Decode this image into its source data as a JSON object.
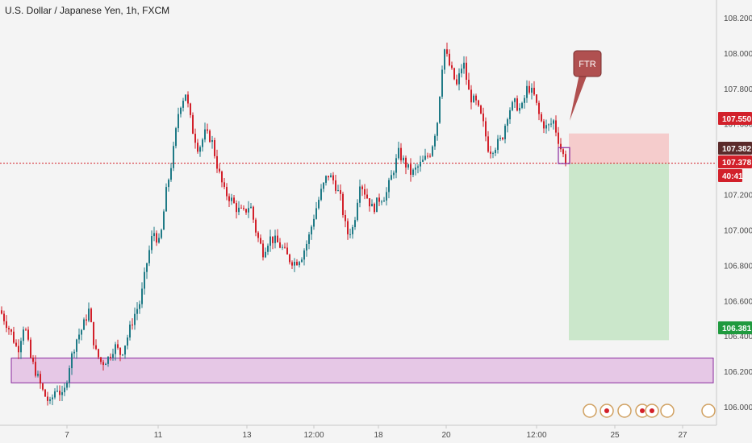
{
  "colors": {
    "background": "#f4f4f4",
    "up": "#1f7a86",
    "down": "#d2202a",
    "stop_zone": "#f5c4c4",
    "target_zone": "#c6e6c6",
    "demand_zone": "#e6c8e6",
    "demand_border": "#8a2a9e",
    "price_line": "#d2202a",
    "badge_red": "#d2202a",
    "badge_green": "#1f9a3e",
    "badge_dark": "#5a2a2a",
    "callout": "#b05050"
  },
  "chart_data": {
    "type": "candlestick",
    "title": "U.S. Dollar / Japanese Yen, 1h, FXCM",
    "ylim": [
      105.9,
      108.25
    ],
    "y_ticks": [
      "106.000",
      "106.200",
      "106.400",
      "106.600",
      "106.800",
      "107.000",
      "107.200",
      "107.400",
      "107.600",
      "107.800",
      "108.000",
      "108.200"
    ],
    "x_ticks": [
      "7",
      "11",
      "13",
      "12:00",
      "18",
      "20",
      "12:00",
      "25",
      "27"
    ],
    "price_badges": [
      {
        "label": "107.550",
        "value": 107.55,
        "color": "red"
      },
      {
        "label": "107.382",
        "value": 107.382,
        "color": "dark"
      },
      {
        "label": "107.378",
        "value": 107.378,
        "color": "red"
      },
      {
        "label": "40:41",
        "value": 107.28,
        "color": "red"
      },
      {
        "label": "106.381",
        "value": 106.381,
        "color": "green"
      }
    ],
    "current_price": 107.382,
    "position": {
      "entry": 107.38,
      "stop": 107.55,
      "target": 106.381
    },
    "demand_zone": [
      106.14,
      106.28
    ],
    "annotation": {
      "text": "FTR",
      "box_high": 107.47,
      "box_low": 107.38
    },
    "price_path": [
      [
        0,
        106.55
      ],
      [
        14,
        106.42
      ],
      [
        22,
        106.32
      ],
      [
        30,
        106.48
      ],
      [
        38,
        106.28
      ],
      [
        46,
        106.18
      ],
      [
        54,
        106.08
      ],
      [
        62,
        106.02
      ],
      [
        70,
        106.12
      ],
      [
        78,
        106.05
      ],
      [
        86,
        106.24
      ],
      [
        94,
        106.38
      ],
      [
        102,
        106.45
      ],
      [
        110,
        106.55
      ],
      [
        118,
        106.32
      ],
      [
        126,
        106.25
      ],
      [
        134,
        106.28
      ],
      [
        142,
        106.35
      ],
      [
        150,
        106.3
      ],
      [
        158,
        106.4
      ],
      [
        166,
        106.52
      ],
      [
        174,
        106.6
      ],
      [
        182,
        106.82
      ],
      [
        190,
        107.0
      ],
      [
        198,
        106.92
      ],
      [
        206,
        107.22
      ],
      [
        214,
        107.42
      ],
      [
        222,
        107.7
      ],
      [
        230,
        107.78
      ],
      [
        238,
        107.58
      ],
      [
        246,
        107.46
      ],
      [
        254,
        107.55
      ],
      [
        262,
        107.52
      ],
      [
        270,
        107.35
      ],
      [
        278,
        107.22
      ],
      [
        286,
        107.18
      ],
      [
        294,
        107.12
      ],
      [
        302,
        107.1
      ],
      [
        310,
        107.15
      ],
      [
        318,
        106.98
      ],
      [
        326,
        106.88
      ],
      [
        334,
        106.96
      ],
      [
        342,
        106.94
      ],
      [
        350,
        106.9
      ],
      [
        358,
        106.84
      ],
      [
        366,
        106.82
      ],
      [
        374,
        106.86
      ],
      [
        382,
        106.95
      ],
      [
        390,
        107.1
      ],
      [
        398,
        107.22
      ],
      [
        406,
        107.32
      ],
      [
        414,
        107.28
      ],
      [
        422,
        107.18
      ],
      [
        430,
        106.98
      ],
      [
        438,
        107.02
      ],
      [
        446,
        107.28
      ],
      [
        454,
        107.2
      ],
      [
        462,
        107.12
      ],
      [
        470,
        107.18
      ],
      [
        478,
        107.2
      ],
      [
        486,
        107.32
      ],
      [
        494,
        107.44
      ],
      [
        502,
        107.38
      ],
      [
        510,
        107.32
      ],
      [
        518,
        107.36
      ],
      [
        526,
        107.4
      ],
      [
        534,
        107.45
      ],
      [
        542,
        107.62
      ],
      [
        550,
        108.04
      ],
      [
        558,
        107.92
      ],
      [
        566,
        107.82
      ],
      [
        574,
        107.96
      ],
      [
        582,
        107.76
      ],
      [
        590,
        107.72
      ],
      [
        598,
        107.62
      ],
      [
        606,
        107.45
      ],
      [
        614,
        107.48
      ],
      [
        622,
        107.52
      ],
      [
        630,
        107.68
      ],
      [
        638,
        107.72
      ],
      [
        646,
        107.68
      ],
      [
        654,
        107.82
      ],
      [
        662,
        107.76
      ],
      [
        670,
        107.62
      ],
      [
        678,
        107.58
      ],
      [
        686,
        107.62
      ],
      [
        694,
        107.48
      ],
      [
        700,
        107.4
      ]
    ]
  }
}
